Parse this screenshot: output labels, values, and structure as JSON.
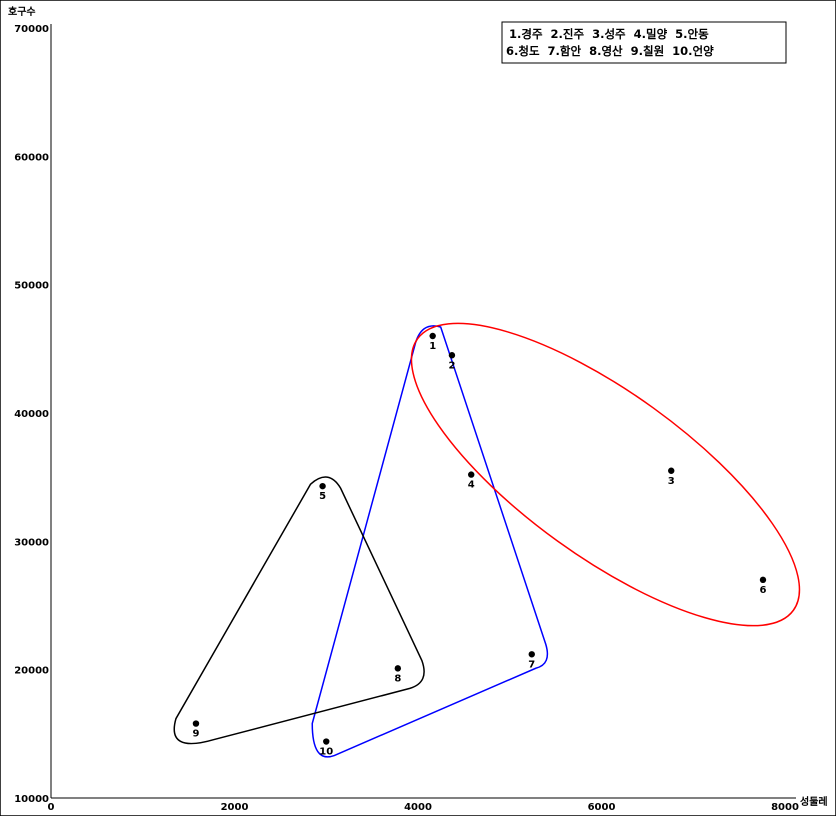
{
  "chart_data": {
    "type": "scatter",
    "title": "",
    "xlabel": "성둘레",
    "ylabel": "호구수",
    "xlim": [
      0,
      8000
    ],
    "ylim": [
      10000,
      70000
    ],
    "x_ticks": [
      "0",
      "2000",
      "4000",
      "6000",
      "8000"
    ],
    "y_ticks": [
      "10000",
      "20000",
      "30000",
      "40000",
      "50000",
      "60000",
      "70000"
    ],
    "x_tick_values": [
      0,
      2000,
      4000,
      6000,
      8000
    ],
    "y_tick_values": [
      10000,
      20000,
      30000,
      40000,
      50000,
      60000,
      70000
    ],
    "grid": false,
    "legend_position": "top-right",
    "legend": {
      "line1": "1.경주  2.진주  3.성주  4.밀양  5.안동",
      "line2": "6.청도  7.함안  8.영산  9.칠원  10.언양"
    },
    "points": [
      {
        "label": "1",
        "name": "경주",
        "x": 4160,
        "y": 46000
      },
      {
        "label": "2",
        "name": "진주",
        "x": 4370,
        "y": 44500
      },
      {
        "label": "3",
        "name": "성주",
        "x": 6760,
        "y": 35500
      },
      {
        "label": "4",
        "name": "밀양",
        "x": 4580,
        "y": 35200
      },
      {
        "label": "5",
        "name": "안동",
        "x": 2960,
        "y": 34300
      },
      {
        "label": "6",
        "name": "청도",
        "x": 7760,
        "y": 27000
      },
      {
        "label": "7",
        "name": "함안",
        "x": 5240,
        "y": 21200
      },
      {
        "label": "8",
        "name": "영산",
        "x": 3780,
        "y": 20100
      },
      {
        "label": "9",
        "name": "칠원",
        "x": 1580,
        "y": 15800
      },
      {
        "label": "10",
        "name": "언양",
        "x": 3000,
        "y": 14400
      }
    ],
    "groups": [
      {
        "color": "#0000ff",
        "members": [
          "1",
          "2",
          "4",
          "7",
          "10"
        ]
      },
      {
        "color": "#ff0000",
        "members": [
          "2",
          "3",
          "4",
          "6"
        ]
      },
      {
        "color": "#000000",
        "members": [
          "5",
          "8",
          "9"
        ]
      }
    ]
  }
}
